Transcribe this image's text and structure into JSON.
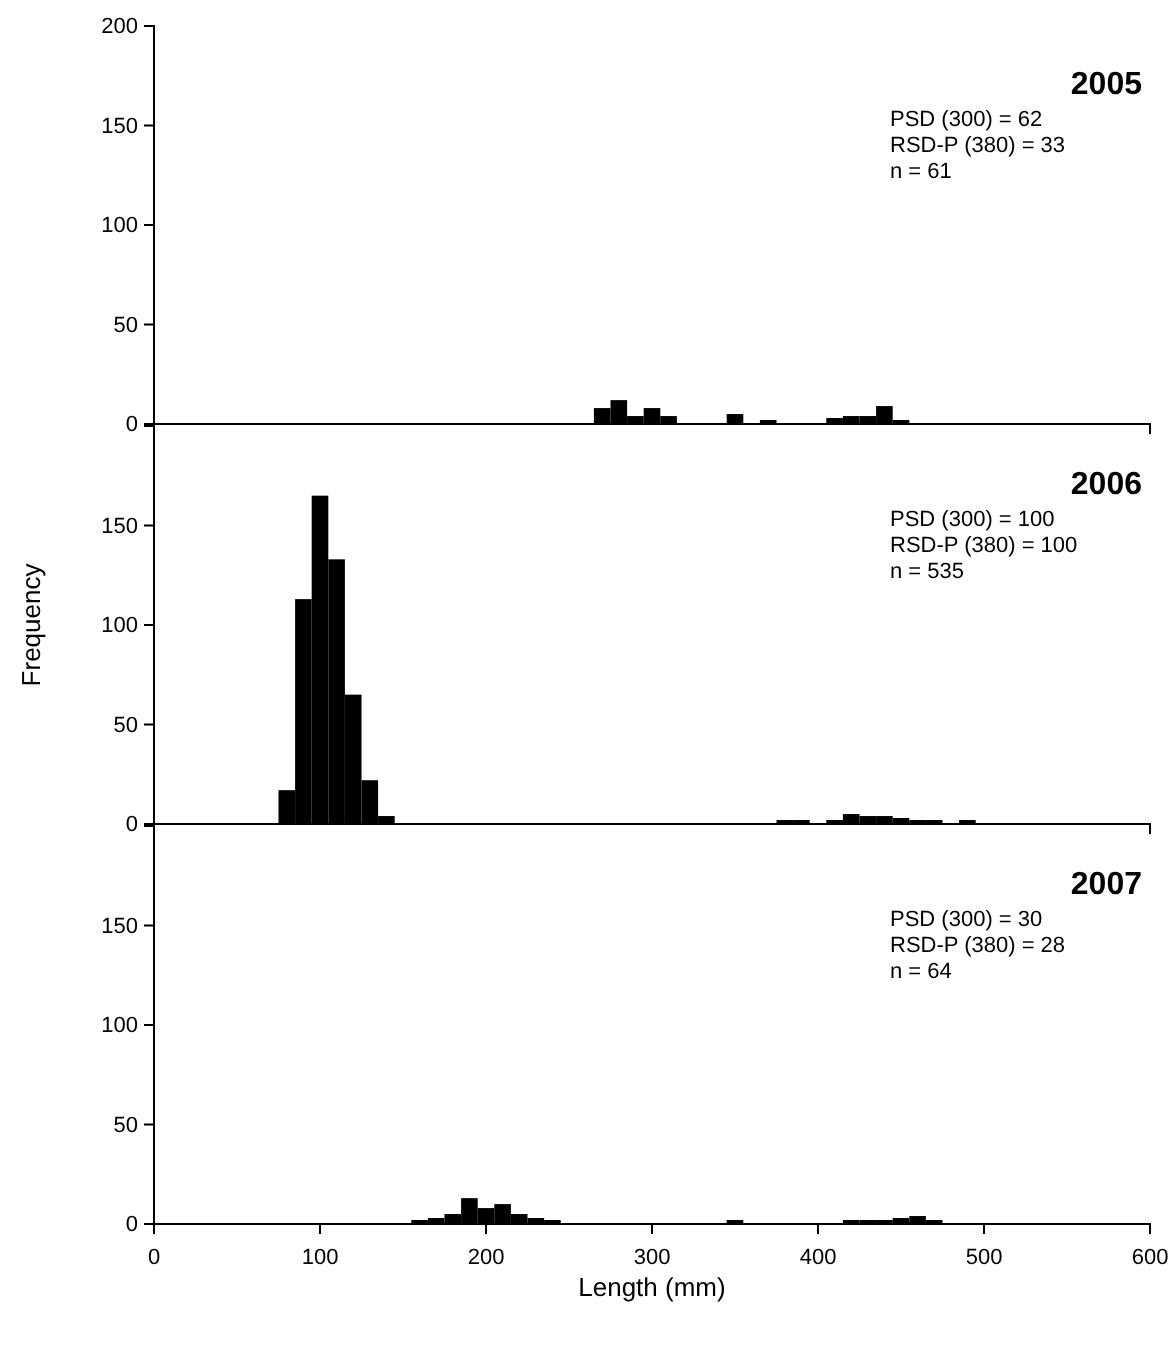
{
  "chart_data": [
    {
      "type": "histogram",
      "title": "2005",
      "annotations": [
        "PSD (300) = 62",
        "RSD-P (380) = 33",
        "n = 61"
      ],
      "xlim": [
        0,
        600
      ],
      "ylim": [
        0,
        200
      ],
      "yticks": [
        0,
        50,
        100,
        150,
        200
      ],
      "tick_labels": "y",
      "color": "#000000",
      "bins": [
        265,
        275,
        285,
        295,
        305,
        315,
        325,
        335,
        345,
        355,
        365,
        375,
        385,
        395,
        405,
        415,
        425,
        435,
        445,
        455
      ],
      "values": [
        8,
        12,
        4,
        8,
        4,
        0,
        0,
        0,
        5,
        0,
        2,
        0,
        0,
        0,
        3,
        4,
        4,
        9,
        2
      ]
    },
    {
      "type": "histogram",
      "title": "2006",
      "ylabel": "Frequency",
      "annotations": [
        "PSD (300) = 100",
        "RSD-P (380) = 100",
        "n = 535"
      ],
      "xlim": [
        0,
        600
      ],
      "ylim": [
        0,
        200
      ],
      "yticks": [
        0,
        50,
        100,
        150
      ],
      "tick_labels": "y",
      "color": "#000000",
      "bins": [
        75,
        85,
        95,
        105,
        115,
        125,
        135,
        145,
        155,
        165,
        175,
        185,
        195,
        205,
        215,
        225,
        235,
        245,
        255,
        265,
        275,
        285,
        295,
        305,
        315,
        325,
        335,
        345,
        355,
        365,
        375,
        385,
        395,
        405,
        415,
        425,
        435,
        445,
        455,
        465,
        475,
        485,
        495
      ],
      "values": [
        17,
        113,
        165,
        133,
        65,
        22,
        4,
        0,
        0,
        0,
        0,
        0,
        0,
        0,
        0,
        0,
        0,
        0,
        0,
        0,
        0,
        0,
        0,
        0,
        0,
        0,
        0,
        0,
        0,
        0,
        2,
        2,
        0,
        2,
        5,
        4,
        4,
        3,
        2,
        2,
        0,
        2
      ]
    },
    {
      "type": "histogram",
      "title": "2007",
      "xlabel": "Length (mm)",
      "annotations": [
        "PSD (300) = 30",
        "RSD-P (380) = 28",
        "n = 64"
      ],
      "xlim": [
        0,
        600
      ],
      "xticks": [
        0,
        100,
        200,
        300,
        400,
        500,
        600
      ],
      "ylim": [
        0,
        200
      ],
      "yticks": [
        0,
        50,
        100,
        150
      ],
      "color": "#000000",
      "bins": [
        155,
        165,
        175,
        185,
        195,
        205,
        215,
        225,
        235,
        245,
        255,
        265,
        275,
        285,
        295,
        305,
        315,
        325,
        335,
        345,
        355,
        365,
        375,
        385,
        395,
        405,
        415,
        425,
        435,
        445,
        455,
        465,
        475
      ],
      "values": [
        2,
        3,
        5,
        13,
        8,
        10,
        5,
        3,
        2,
        0,
        0,
        0,
        0,
        0,
        0,
        0,
        0,
        0,
        0,
        2,
        0,
        0,
        0,
        0,
        0,
        0,
        2,
        2,
        2,
        3,
        4,
        2
      ]
    }
  ]
}
